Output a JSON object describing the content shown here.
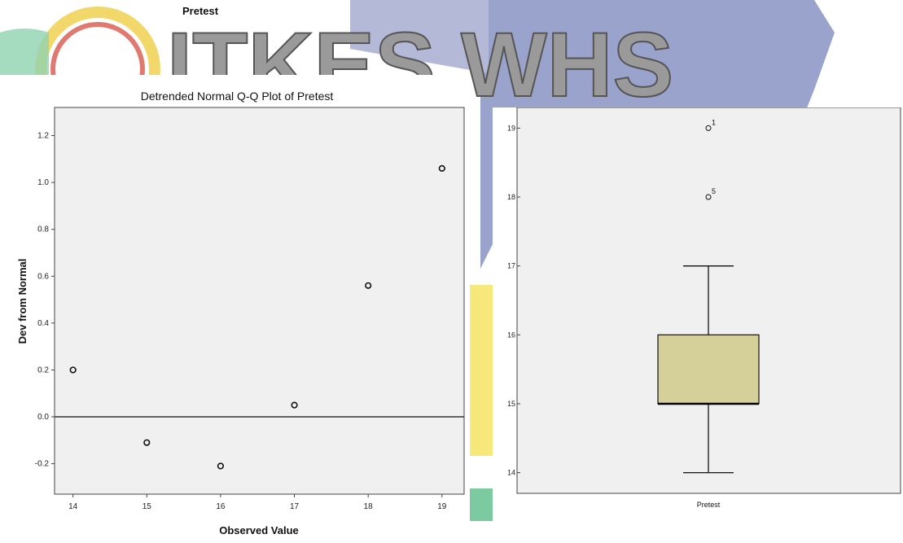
{
  "header": {
    "title": "Pretest"
  },
  "watermark": {
    "text": "ITKES WHS",
    "colors": {
      "blue": "#9aa3cc",
      "yellow": "#f6e87a",
      "green": "#7ccaa0",
      "red": "#e07a70"
    }
  },
  "chart_data": [
    {
      "type": "scatter",
      "title": "Detrended Normal Q-Q Plot of Pretest",
      "xlabel": "Observed Value",
      "ylabel": "Dev from Normal",
      "x_ticks": [
        14,
        15,
        16,
        17,
        18,
        19
      ],
      "y_ticks": [
        -0.2,
        0.0,
        0.2,
        0.4,
        0.6,
        0.8,
        1.0,
        1.2
      ],
      "y_tick_labels": [
        "-0.2",
        "0.0",
        "0.2",
        "0.4",
        "0.6",
        "0.8",
        "1.0",
        "1.2"
      ],
      "xlim": [
        13.75,
        19.3
      ],
      "ylim": [
        -0.33,
        1.32
      ],
      "reference_line": 0,
      "points": [
        {
          "x": 14,
          "y": 0.2
        },
        {
          "x": 15,
          "y": -0.11
        },
        {
          "x": 16,
          "y": -0.21
        },
        {
          "x": 17,
          "y": 0.05
        },
        {
          "x": 18,
          "y": 0.56
        },
        {
          "x": 19,
          "y": 1.06
        }
      ],
      "plot_background": "#f0f0f0"
    },
    {
      "type": "box",
      "category": "Pretest",
      "y_ticks": [
        14,
        15,
        16,
        17,
        18,
        19
      ],
      "ylim": [
        13.7,
        19.3
      ],
      "whisker_low": 14,
      "q1": 15,
      "median": 15,
      "q3": 16,
      "whisker_high": 17,
      "outliers": [
        {
          "value": 19,
          "label": "1"
        },
        {
          "value": 18,
          "label": "5"
        }
      ],
      "box_color": "#d5cf9a",
      "plot_background": "#f0f0f0"
    }
  ]
}
